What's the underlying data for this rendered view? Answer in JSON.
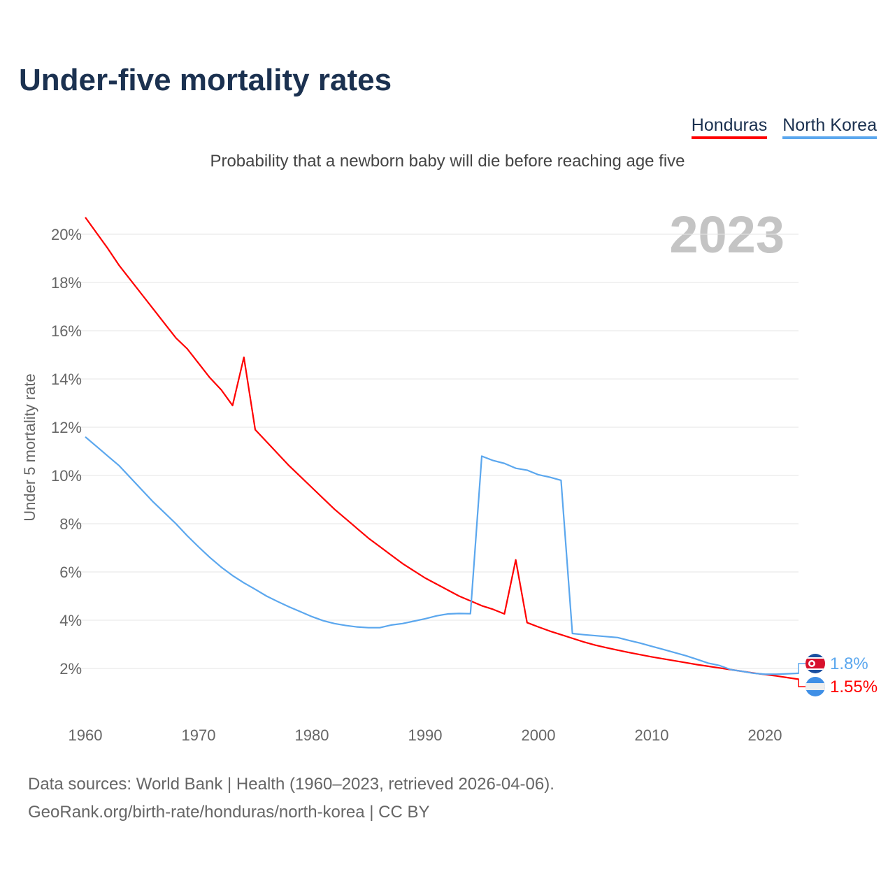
{
  "title": "Under-five mortality rates",
  "subtitle": "Probability that a newborn baby will die before reaching age five",
  "year_label": "2023",
  "legend": [
    {
      "name": "Honduras",
      "color": "#ff0000"
    },
    {
      "name": "North Korea",
      "color": "#5ba7ee"
    }
  ],
  "end_labels": {
    "north_korea": "1.8%",
    "honduras": "1.55%"
  },
  "source_line1": "Data sources: World Bank | Health (1960–2023, retrieved 2026-04-06).",
  "source_line2": "GeoRank.org/birth-rate/honduras/north-korea | CC BY",
  "chart_data": {
    "type": "line",
    "title": "Under-five mortality rates",
    "xlabel": "",
    "ylabel": "Under 5 mortality rate",
    "xlim": [
      1960,
      2023
    ],
    "ylim": [
      0,
      21
    ],
    "xticks": [
      1960,
      1970,
      1980,
      1990,
      2000,
      2010,
      2020
    ],
    "yticks": [
      2,
      4,
      6,
      8,
      10,
      12,
      14,
      16,
      18,
      20
    ],
    "ytick_labels": [
      "2%",
      "4%",
      "6%",
      "8%",
      "10%",
      "12%",
      "14%",
      "16%",
      "18%",
      "20%"
    ],
    "grid": true,
    "legend_position": "top-right",
    "x_start": 1960,
    "series": [
      {
        "name": "Honduras",
        "color": "#ff0000",
        "values": [
          20.7,
          20.05,
          19.4,
          18.7,
          18.1,
          17.5,
          16.9,
          16.3,
          15.7,
          15.25,
          14.65,
          14.05,
          13.55,
          12.9,
          14.9,
          11.9,
          11.4,
          10.9,
          10.4,
          9.95,
          9.5,
          9.05,
          8.6,
          8.2,
          7.8,
          7.4,
          7.05,
          6.7,
          6.35,
          6.05,
          5.75,
          5.5,
          5.25,
          5.0,
          4.8,
          4.6,
          4.45,
          4.26,
          6.5,
          3.9,
          3.72,
          3.55,
          3.4,
          3.25,
          3.1,
          2.97,
          2.86,
          2.76,
          2.66,
          2.57,
          2.48,
          2.4,
          2.32,
          2.24,
          2.16,
          2.09,
          2.02,
          1.95,
          1.88,
          1.81,
          1.75,
          1.69,
          1.62,
          1.55
        ]
      },
      {
        "name": "North Korea",
        "color": "#5ba7ee",
        "values": [
          11.6,
          11.2,
          10.8,
          10.4,
          9.9,
          9.4,
          8.9,
          8.45,
          8.0,
          7.5,
          7.04,
          6.6,
          6.2,
          5.85,
          5.55,
          5.28,
          5.0,
          4.77,
          4.55,
          4.35,
          4.15,
          3.98,
          3.86,
          3.78,
          3.72,
          3.69,
          3.69,
          3.8,
          3.86,
          3.96,
          4.06,
          4.18,
          4.26,
          4.28,
          4.27,
          10.8,
          10.62,
          10.5,
          10.3,
          10.22,
          10.03,
          9.93,
          9.8,
          3.45,
          3.4,
          3.36,
          3.32,
          3.28,
          3.16,
          3.05,
          2.92,
          2.79,
          2.66,
          2.53,
          2.38,
          2.22,
          2.12,
          1.95,
          1.88,
          1.8,
          1.76,
          1.76,
          1.78,
          1.8
        ]
      }
    ]
  }
}
